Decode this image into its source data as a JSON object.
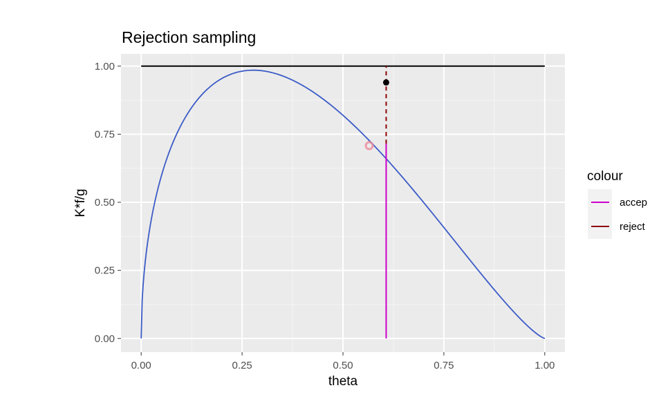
{
  "chart_data": {
    "type": "line",
    "title": "Rejection sampling",
    "xlabel": "theta",
    "ylabel": "K*f/g",
    "xlim": [
      -0.05,
      1.05
    ],
    "ylim": [
      -0.05,
      1.045
    ],
    "x_ticks": [
      "0.00",
      "0.25",
      "0.50",
      "0.75",
      "1.00"
    ],
    "x_tick_values": [
      0,
      0.25,
      0.5,
      0.75,
      1.0
    ],
    "y_ticks": [
      "0.00",
      "0.25",
      "0.50",
      "0.75",
      "1.00"
    ],
    "y_tick_values": [
      0,
      0.25,
      0.5,
      0.75,
      1.0
    ],
    "grid": true,
    "curve": {
      "description_color": "#3b5bc7",
      "shape_alpha": 1.5,
      "shape_beta": 2.3
    },
    "envelope": {
      "x": [
        0,
        1
      ],
      "y": 1.0,
      "color": "#000000"
    },
    "sample": {
      "theta": 0.607,
      "u": 0.94,
      "curve_value_at_theta": 0.715
    },
    "segments": [
      {
        "name": "accept",
        "color": "#cc00cc",
        "x": 0.607,
        "y_from": 0,
        "y_to": 0.715,
        "dash": false
      },
      {
        "name": "reject",
        "color": "#8b0000",
        "x": 0.607,
        "y_from": 0.715,
        "y_to": 1.0,
        "dash": true
      }
    ],
    "point": {
      "x": 0.607,
      "y": 0.94,
      "color": "#000000"
    },
    "legend": {
      "title": "colour",
      "entries": [
        {
          "label": "accep",
          "color": "#cc00cc"
        },
        {
          "label": "reject",
          "color": "#8b0000"
        }
      ]
    }
  }
}
